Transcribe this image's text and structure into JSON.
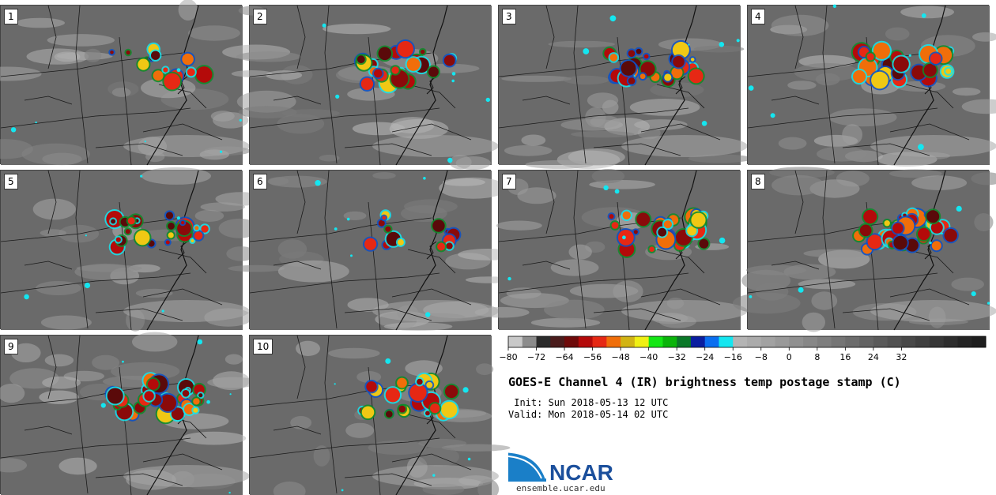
{
  "panels": [
    {
      "label": "1",
      "storm": "light"
    },
    {
      "label": "2",
      "storm": "medium"
    },
    {
      "label": "3",
      "storm": "medium"
    },
    {
      "label": "4",
      "storm": "medium"
    },
    {
      "label": "5",
      "storm": "medium"
    },
    {
      "label": "6",
      "storm": "light"
    },
    {
      "label": "7",
      "storm": "heavy"
    },
    {
      "label": "8",
      "storm": "heavy"
    },
    {
      "label": "9",
      "storm": "heavy"
    },
    {
      "label": "10",
      "storm": "medium"
    }
  ],
  "colorbar": {
    "tick_labels": [
      "−80",
      "−72",
      "−64",
      "−56",
      "−48",
      "−40",
      "−32",
      "−24",
      "−16",
      "−8",
      "0",
      "8",
      "16",
      "24",
      "32"
    ],
    "colors": [
      "#c8c8c8",
      "#8c8c8c",
      "#2b2b2b",
      "#4a1c1c",
      "#6e0a0a",
      "#b40a0a",
      "#e62814",
      "#f06e0a",
      "#d2b414",
      "#f0f014",
      "#14e614",
      "#0ab40a",
      "#0a7828",
      "#0a1ea0",
      "#0a6ef0",
      "#14e6f0",
      "#b4b4b4",
      "#ababab",
      "#a2a2a2",
      "#999999",
      "#909090",
      "#878787",
      "#7e7e7e",
      "#757575",
      "#6c6c6c",
      "#636363",
      "#5a5a5a",
      "#515151",
      "#484848",
      "#3f3f3f",
      "#363636",
      "#2d2d2d",
      "#242424",
      "#1e1e1e"
    ]
  },
  "title": "GOES-E Channel 4 (IR) brightness temp postage stamp (C)",
  "init": " Init: Sun 2018-05-13 12 UTC",
  "valid": "Valid: Mon 2018-05-14 02 UTC",
  "logo": {
    "text": "NCAR",
    "url": "ensemble.ucar.edu"
  }
}
